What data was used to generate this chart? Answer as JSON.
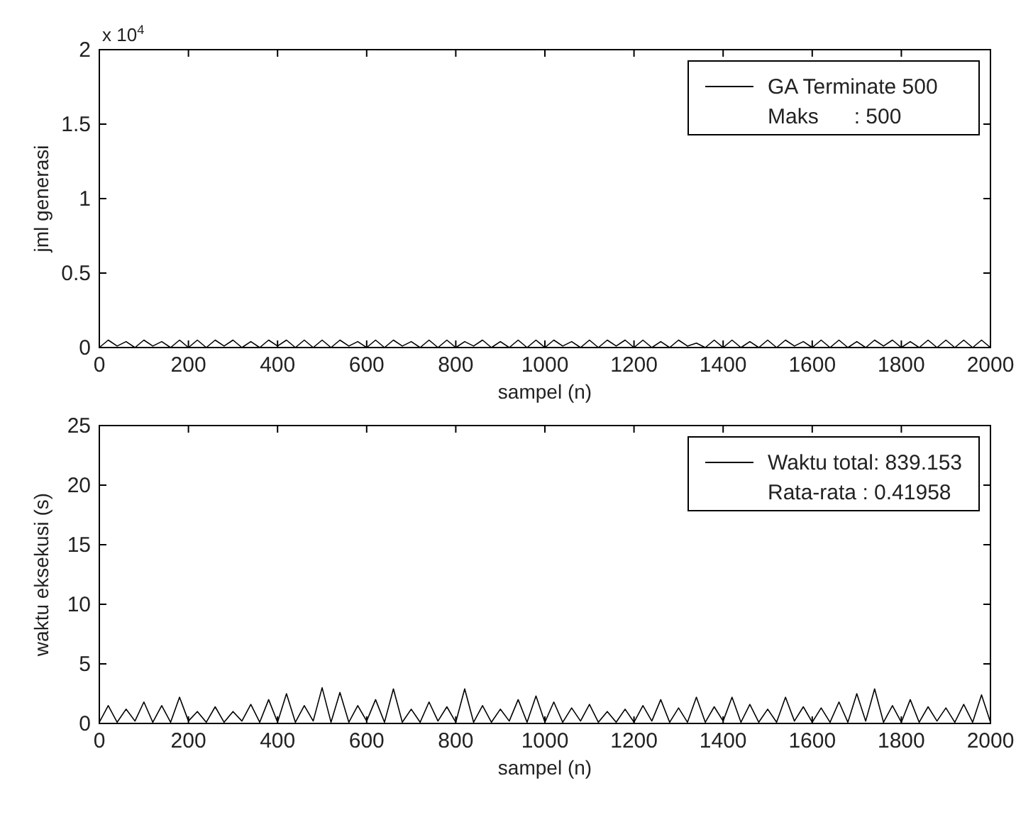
{
  "chart_data": [
    {
      "type": "line",
      "xlabel": "sampel (n)",
      "ylabel": "jml generasi",
      "annotations": [
        "x 10$^{4}$",
        "Maks      : 500"
      ],
      "legend": "top right",
      "xlim": [
        0,
        2000
      ],
      "xticks": [
        0,
        200,
        400,
        600,
        800,
        1000,
        1200,
        1400,
        1600,
        1800,
        2000
      ],
      "ylim": [
        0,
        2
      ],
      "yticks": [
        0,
        0.5,
        1,
        1.5,
        2
      ],
      "series": [
        {
          "name": "GA Terminate 500",
          "color": "#000000",
          "x": [
            0,
            20,
            40,
            60,
            80,
            100,
            120,
            140,
            160,
            180,
            200,
            220,
            240,
            260,
            280,
            300,
            320,
            340,
            360,
            380,
            400,
            420,
            440,
            460,
            480,
            500,
            520,
            540,
            560,
            580,
            600,
            620,
            640,
            660,
            680,
            700,
            720,
            740,
            760,
            780,
            800,
            820,
            840,
            860,
            880,
            900,
            920,
            940,
            960,
            980,
            1000,
            1020,
            1040,
            1060,
            1080,
            1100,
            1120,
            1140,
            1160,
            1180,
            1200,
            1220,
            1240,
            1260,
            1280,
            1300,
            1320,
            1340,
            1360,
            1380,
            1400,
            1420,
            1440,
            1460,
            1480,
            1500,
            1520,
            1540,
            1560,
            1580,
            1600,
            1620,
            1640,
            1660,
            1680,
            1700,
            1720,
            1740,
            1760,
            1780,
            1800,
            1820,
            1840,
            1860,
            1880,
            1900,
            1920,
            1940,
            1960,
            1980,
            2000
          ],
          "values": [
            0,
            0.05,
            0.01,
            0.04,
            0,
            0.05,
            0.01,
            0.04,
            0,
            0.05,
            0,
            0.05,
            0,
            0.05,
            0.01,
            0.05,
            0,
            0.04,
            0,
            0.05,
            0.01,
            0.05,
            0,
            0.05,
            0,
            0.05,
            0,
            0.05,
            0.01,
            0.04,
            0,
            0.05,
            0,
            0.05,
            0.01,
            0.04,
            0,
            0.05,
            0,
            0.05,
            0,
            0.04,
            0.01,
            0.05,
            0,
            0.04,
            0,
            0.05,
            0,
            0.05,
            0,
            0.05,
            0.01,
            0.04,
            0,
            0.05,
            0,
            0.05,
            0.01,
            0.05,
            0,
            0.05,
            0,
            0.04,
            0,
            0.05,
            0.01,
            0.03,
            0,
            0.05,
            0,
            0.05,
            0,
            0.04,
            0,
            0.05,
            0,
            0.05,
            0.01,
            0.04,
            0,
            0.05,
            0,
            0.05,
            0,
            0.04,
            0,
            0.05,
            0.01,
            0.05,
            0,
            0.04,
            0,
            0.05,
            0,
            0.05,
            0,
            0.05,
            0,
            0.05,
            0
          ]
        }
      ]
    },
    {
      "type": "line",
      "xlabel": "sampel (n)",
      "ylabel": "waktu eksekusi (s)",
      "annotations": [
        "Rata-rata : 0.41958"
      ],
      "legend": "top right",
      "xlim": [
        0,
        2000
      ],
      "xticks": [
        0,
        200,
        400,
        600,
        800,
        1000,
        1200,
        1400,
        1600,
        1800,
        2000
      ],
      "ylim": [
        0,
        25
      ],
      "yticks": [
        0,
        5,
        10,
        15,
        20,
        25
      ],
      "series": [
        {
          "name": "Waktu total: 839.153",
          "color": "#000000",
          "x": [
            0,
            20,
            40,
            60,
            80,
            100,
            120,
            140,
            160,
            180,
            200,
            220,
            240,
            260,
            280,
            300,
            320,
            340,
            360,
            380,
            400,
            420,
            440,
            460,
            480,
            500,
            520,
            540,
            560,
            580,
            600,
            620,
            640,
            660,
            680,
            700,
            720,
            740,
            760,
            780,
            800,
            820,
            840,
            860,
            880,
            900,
            920,
            940,
            960,
            980,
            1000,
            1020,
            1040,
            1060,
            1080,
            1100,
            1120,
            1140,
            1160,
            1180,
            1200,
            1220,
            1240,
            1260,
            1280,
            1300,
            1320,
            1340,
            1360,
            1380,
            1400,
            1420,
            1440,
            1460,
            1480,
            1500,
            1520,
            1540,
            1560,
            1580,
            1600,
            1620,
            1640,
            1660,
            1680,
            1700,
            1720,
            1740,
            1760,
            1780,
            1800,
            1820,
            1840,
            1860,
            1880,
            1900,
            1920,
            1940,
            1960,
            1980,
            2000
          ],
          "values": [
            0.1,
            1.5,
            0.1,
            1.2,
            0.2,
            1.8,
            0.1,
            1.5,
            0.1,
            2.2,
            0.2,
            1.0,
            0.1,
            1.4,
            0.1,
            1.0,
            0.2,
            1.6,
            0.1,
            2.0,
            0.1,
            2.5,
            0.1,
            1.5,
            0.2,
            3.0,
            0.1,
            2.6,
            0.1,
            1.5,
            0.2,
            2.0,
            0.1,
            2.9,
            0.1,
            1.2,
            0.1,
            1.8,
            0.2,
            1.4,
            0.1,
            2.9,
            0.1,
            1.5,
            0.1,
            1.2,
            0.2,
            2.0,
            0.1,
            2.3,
            0.1,
            1.8,
            0.1,
            1.3,
            0.2,
            1.6,
            0.1,
            1.0,
            0.1,
            1.2,
            0.1,
            1.5,
            0.2,
            2.0,
            0.1,
            1.3,
            0.1,
            2.2,
            0.1,
            1.4,
            0.2,
            2.2,
            0.1,
            1.6,
            0.1,
            1.2,
            0.1,
            2.2,
            0.2,
            1.4,
            0.1,
            1.3,
            0.1,
            1.8,
            0.1,
            2.5,
            0.2,
            2.9,
            0.1,
            1.5,
            0.1,
            2.0,
            0.1,
            1.4,
            0.2,
            1.3,
            0.1,
            1.6,
            0.1,
            2.4,
            0.1
          ]
        }
      ]
    }
  ]
}
